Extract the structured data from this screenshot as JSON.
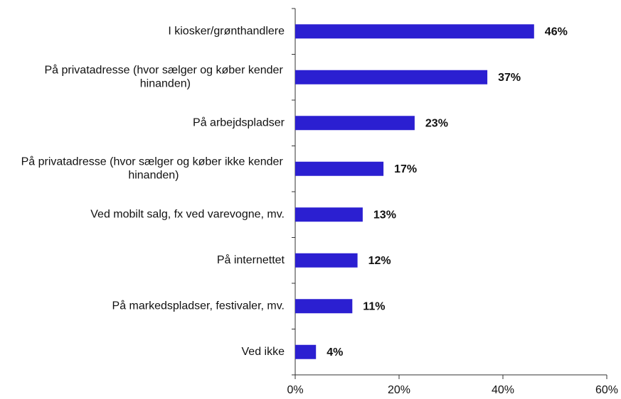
{
  "chart_data": {
    "type": "barh",
    "categories": [
      "I kiosker/grønthandlere",
      "På privatadresse (hvor sælger og køber kender hinanden)",
      "På arbejdspladser",
      "På privatadresse (hvor sælger og køber ikke kender hinanden)",
      "Ved mobilt salg, fx ved varevogne, mv.",
      "På internettet",
      "På markedspladser, festivaler, mv.",
      "Ved ikke"
    ],
    "values": [
      46,
      37,
      23,
      17,
      13,
      12,
      11,
      4
    ],
    "value_labels": [
      "46%",
      "37%",
      "23%",
      "17%",
      "13%",
      "12%",
      "11%",
      "4%"
    ],
    "color": "#2b1fd1",
    "xlim": [
      0,
      60
    ],
    "xticks": [
      {
        "value": 0,
        "label": "0%"
      },
      {
        "value": 20,
        "label": "20%"
      },
      {
        "value": 40,
        "label": "40%"
      },
      {
        "value": 60,
        "label": "60%"
      }
    ]
  }
}
